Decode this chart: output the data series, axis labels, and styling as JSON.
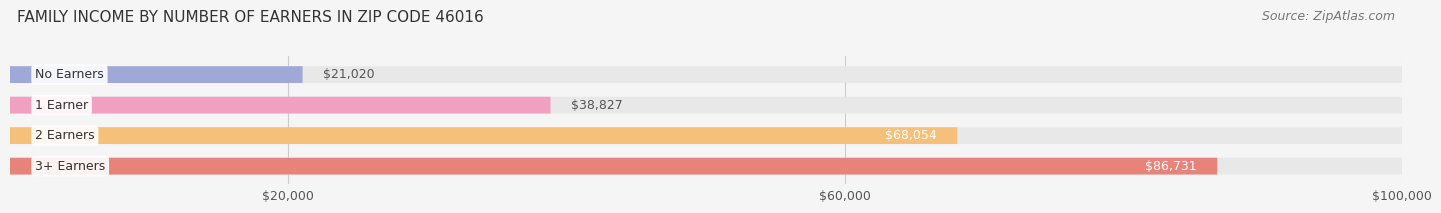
{
  "title": "FAMILY INCOME BY NUMBER OF EARNERS IN ZIP CODE 46016",
  "source": "Source: ZipAtlas.com",
  "categories": [
    "No Earners",
    "1 Earner",
    "2 Earners",
    "3+ Earners"
  ],
  "values": [
    21020,
    38827,
    68054,
    86731
  ],
  "value_labels": [
    "$21,020",
    "$38,827",
    "$68,054",
    "$86,731"
  ],
  "bar_colors": [
    "#a0a8d8",
    "#f0a0c0",
    "#f5c07a",
    "#e8837a"
  ],
  "bar_bg_color": "#e8e8e8",
  "background_color": "#f5f5f5",
  "xmax": 100000,
  "xticks": [
    20000,
    60000,
    100000
  ],
  "xtick_labels": [
    "$20,000",
    "$60,000",
    "$100,000"
  ],
  "title_fontsize": 11,
  "source_fontsize": 9,
  "label_fontsize": 9,
  "value_fontsize": 9,
  "tick_fontsize": 9
}
